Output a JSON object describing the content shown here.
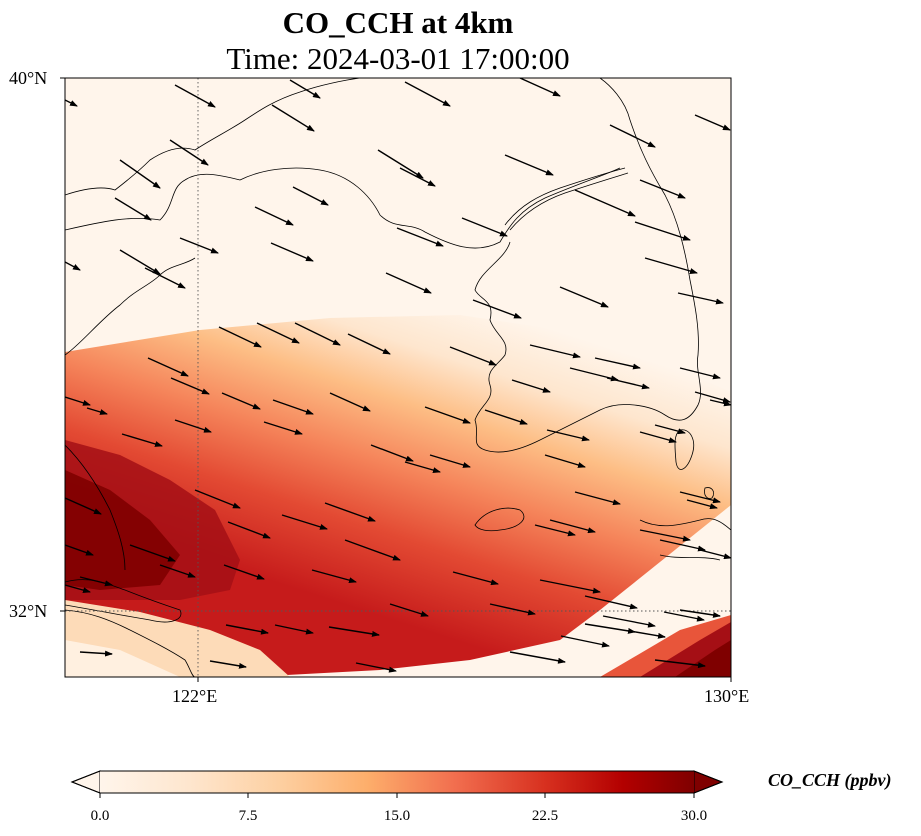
{
  "title_line1": "CO_CCH at 4km",
  "title_line2": "Time: 2024-03-01 17:00:00",
  "lat_labels": [
    "40°N",
    "32°N"
  ],
  "lon_labels": [
    "122°E",
    "130°E"
  ],
  "colorbar": {
    "label": "CO_CCH (ppbv)",
    "ticks": [
      "0.0",
      "7.5",
      "15.0",
      "22.5",
      "30.0"
    ],
    "colormap": [
      "#fff5eb",
      "#fee6ce",
      "#fdd0a2",
      "#fdae6b",
      "#fd8d3c",
      "#f16913",
      "#d94801",
      "#b30000",
      "#7f0000"
    ]
  }
}
